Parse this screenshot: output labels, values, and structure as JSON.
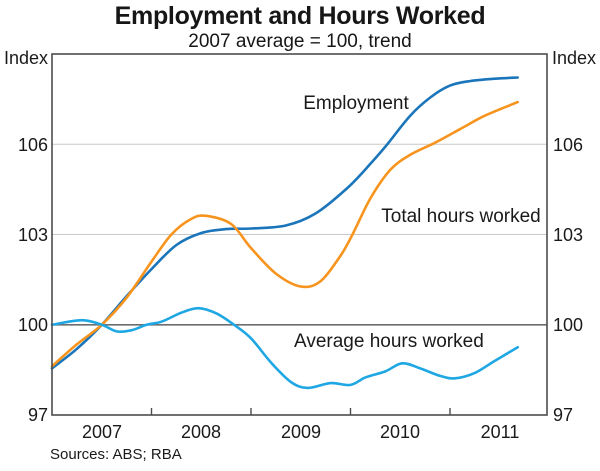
{
  "header": {
    "title": "Employment and Hours Worked",
    "subtitle": "2007 average = 100, trend"
  },
  "axes": {
    "left_unit_label": "Index",
    "right_unit_label": "Index",
    "y_tick_labels": [
      "106",
      "103",
      "100",
      "97"
    ],
    "x_tick_labels": [
      "2007",
      "2008",
      "2009",
      "2010",
      "2011"
    ]
  },
  "footer": {
    "sources": "Sources: ABS; RBA"
  },
  "colors": {
    "employment": "#1a75bb",
    "total_hours": "#f7941e",
    "average_hours": "#1ea7e3",
    "gridline": "#c9c9c9",
    "reference_line": "#6e6e6e",
    "frame": "#4d4d4d"
  },
  "chart_data": {
    "type": "line",
    "title": "Employment and Hours Worked",
    "subtitle": "2007 average = 100, trend",
    "xlabel": "",
    "ylabel": "Index",
    "x_axis": {
      "range_years": [
        2007.0,
        2011.97
      ],
      "tick_years": [
        2008,
        2009,
        2010,
        2011
      ],
      "year_label_centers": [
        2007.5,
        2008.5,
        2009.5,
        2010.5,
        2011.5
      ]
    },
    "y_axis": {
      "range": [
        97,
        109
      ],
      "tick_label_values": [
        106,
        103,
        100,
        97
      ],
      "gridline_values": [
        106,
        103
      ],
      "reference_line_value": 100
    },
    "grid": "horizontal-only",
    "legend_position": "inline-labels",
    "series": [
      {
        "name": "Employment",
        "color": "#1a75bb",
        "points": [
          [
            2007.0,
            98.55
          ],
          [
            2007.25,
            99.2
          ],
          [
            2007.5,
            100.0
          ],
          [
            2007.75,
            100.95
          ],
          [
            2008.0,
            101.85
          ],
          [
            2008.25,
            102.65
          ],
          [
            2008.5,
            103.05
          ],
          [
            2008.75,
            103.18
          ],
          [
            2009.0,
            103.2
          ],
          [
            2009.35,
            103.3
          ],
          [
            2009.65,
            103.7
          ],
          [
            2009.97,
            104.55
          ],
          [
            2010.2,
            105.35
          ],
          [
            2010.37,
            106.0
          ],
          [
            2010.6,
            106.95
          ],
          [
            2010.8,
            107.55
          ],
          [
            2011.0,
            107.95
          ],
          [
            2011.2,
            108.1
          ],
          [
            2011.45,
            108.18
          ],
          [
            2011.68,
            108.22
          ]
        ]
      },
      {
        "name": "Total hours worked",
        "color": "#f7941e",
        "points": [
          [
            2007.0,
            98.62
          ],
          [
            2007.25,
            99.35
          ],
          [
            2007.5,
            100.0
          ],
          [
            2007.75,
            100.9
          ],
          [
            2008.0,
            102.1
          ],
          [
            2008.2,
            103.0
          ],
          [
            2008.4,
            103.52
          ],
          [
            2008.55,
            103.62
          ],
          [
            2008.8,
            103.35
          ],
          [
            2009.0,
            102.55
          ],
          [
            2009.25,
            101.7
          ],
          [
            2009.5,
            101.27
          ],
          [
            2009.7,
            101.45
          ],
          [
            2009.9,
            102.3
          ],
          [
            2010.02,
            103.0
          ],
          [
            2010.2,
            104.2
          ],
          [
            2010.4,
            105.15
          ],
          [
            2010.6,
            105.65
          ],
          [
            2010.85,
            106.05
          ],
          [
            2011.1,
            106.5
          ],
          [
            2011.35,
            106.95
          ],
          [
            2011.68,
            107.4
          ]
        ]
      },
      {
        "name": "Average hours worked",
        "color": "#1ea7e3",
        "points": [
          [
            2007.0,
            100.0
          ],
          [
            2007.3,
            100.15
          ],
          [
            2007.5,
            100.0
          ],
          [
            2007.65,
            99.78
          ],
          [
            2007.8,
            99.82
          ],
          [
            2007.95,
            100.0
          ],
          [
            2008.1,
            100.1
          ],
          [
            2008.3,
            100.4
          ],
          [
            2008.47,
            100.55
          ],
          [
            2008.65,
            100.38
          ],
          [
            2008.83,
            100.0
          ],
          [
            2009.0,
            99.55
          ],
          [
            2009.2,
            98.75
          ],
          [
            2009.4,
            98.1
          ],
          [
            2009.57,
            97.9
          ],
          [
            2009.8,
            98.06
          ],
          [
            2010.0,
            98.0
          ],
          [
            2010.15,
            98.25
          ],
          [
            2010.35,
            98.45
          ],
          [
            2010.52,
            98.72
          ],
          [
            2010.7,
            98.55
          ],
          [
            2010.9,
            98.3
          ],
          [
            2011.05,
            98.22
          ],
          [
            2011.25,
            98.4
          ],
          [
            2011.45,
            98.8
          ],
          [
            2011.68,
            99.25
          ]
        ]
      }
    ]
  }
}
